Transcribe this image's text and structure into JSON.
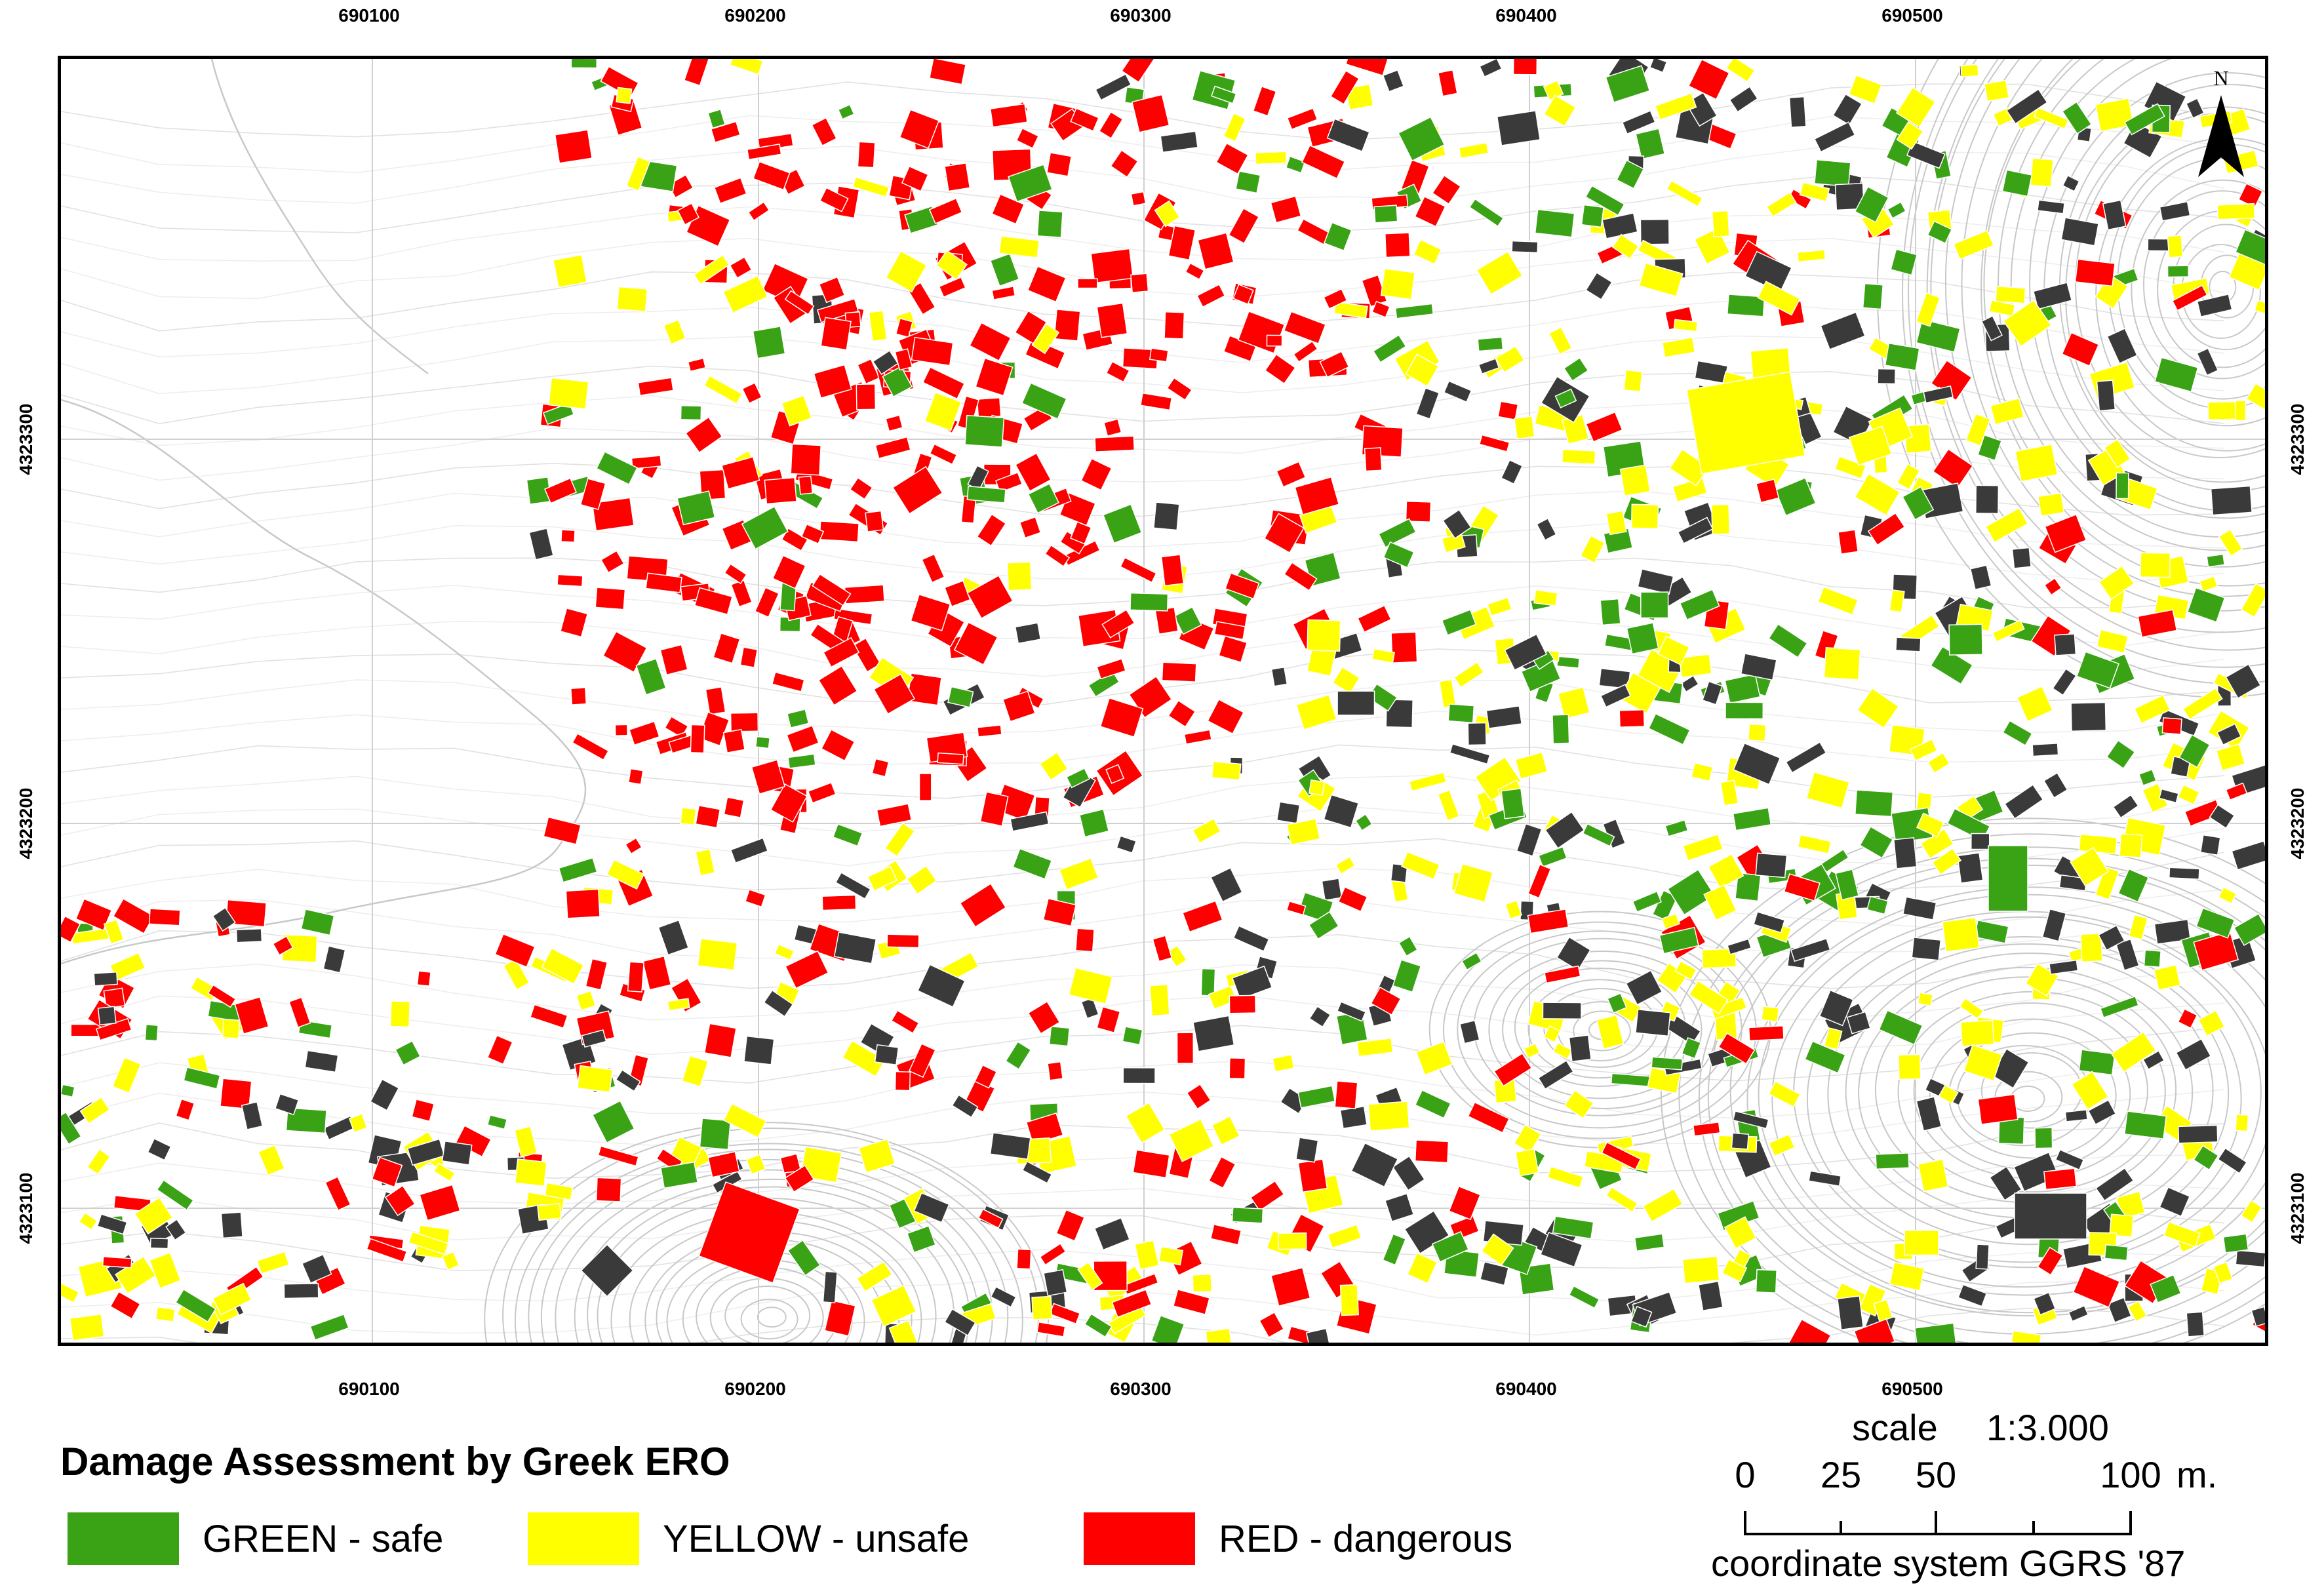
{
  "map": {
    "top_x_labels": [
      "690100",
      "690200",
      "690300",
      "690400",
      "690500"
    ],
    "bottom_x_labels": [
      "690100",
      "690200",
      "690300",
      "690400",
      "690500"
    ],
    "left_y_labels": [
      "4323300",
      "4323200",
      "4323100"
    ],
    "right_y_labels": [
      "4323300",
      "4323200",
      "4323100"
    ],
    "north_label": "N",
    "colors": {
      "green": "#3aa315",
      "yellow": "#ffff00",
      "red": "#ff0000",
      "gray": "#3a3a3a",
      "contour": "#c8c8c8",
      "grid": "#d0d0d0"
    }
  },
  "legend": {
    "title": "Damage Assessment by Greek ERO",
    "items": [
      {
        "label": "GREEN - safe",
        "color": "#3aa315"
      },
      {
        "label": "YELLOW - unsafe",
        "color": "#ffff00"
      },
      {
        "label": "RED - dangerous",
        "color": "#ff0000"
      }
    ]
  },
  "scale": {
    "title": "scale",
    "ratio": "1:3.000",
    "ticks": [
      "0",
      "25",
      "50",
      "100"
    ],
    "unit": "m.",
    "coordinate_system": "coordinate system GGRS '87"
  }
}
